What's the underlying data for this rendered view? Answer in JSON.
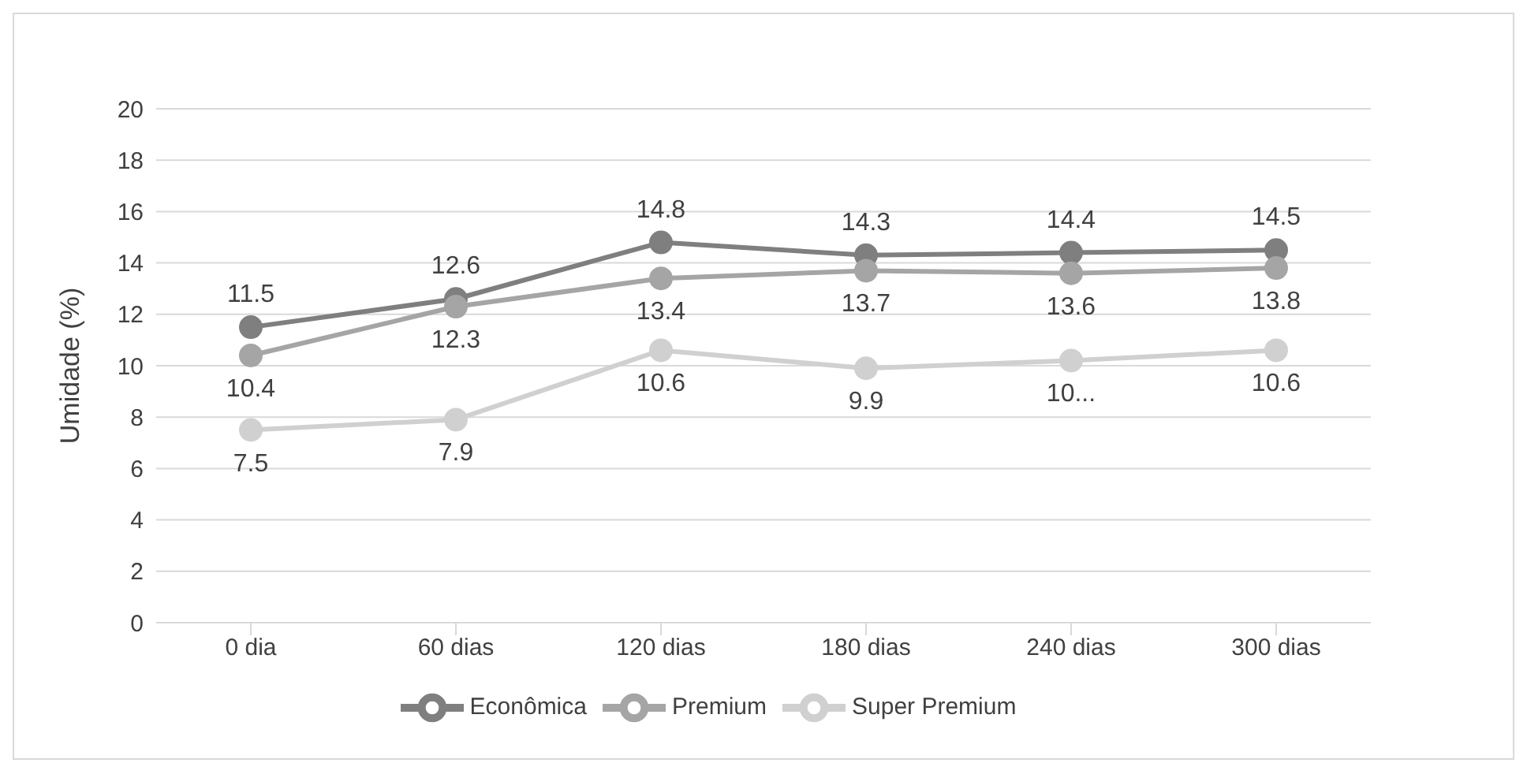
{
  "chart_data": {
    "type": "line",
    "ylabel": "Umidade (%)",
    "categories": [
      "0 dia",
      "60 dias",
      "120 dias",
      "180 dias",
      "240 dias",
      "300 dias"
    ],
    "series": [
      {
        "name": "Econômica",
        "color": "#7f7f7f",
        "values": [
          11.5,
          12.6,
          14.8,
          14.3,
          14.4,
          14.5
        ],
        "value_labels": [
          "11.5",
          "12.6",
          "14.8",
          "14.3",
          "14.4",
          "14.5"
        ]
      },
      {
        "name": "Premium",
        "color": "#a5a5a5",
        "values": [
          10.4,
          12.3,
          13.4,
          13.7,
          13.6,
          13.8
        ],
        "value_labels": [
          "10.4",
          "12.3",
          "13.4",
          "13.7",
          "13.6",
          "13.8"
        ]
      },
      {
        "name": "Super Premium",
        "color": "#d0d0d0",
        "values": [
          7.5,
          7.9,
          10.6,
          9.9,
          10.2,
          10.6
        ],
        "value_labels": [
          "7.5",
          "7.9",
          "10.6",
          "9.9",
          "10...",
          "10.6"
        ]
      }
    ],
    "ylim": [
      0,
      20
    ],
    "yticks": [
      0,
      2,
      4,
      6,
      8,
      10,
      12,
      14,
      16,
      18,
      20
    ],
    "grid": "y",
    "legend": "bottom",
    "marker": "circle",
    "line_style": "solid"
  }
}
